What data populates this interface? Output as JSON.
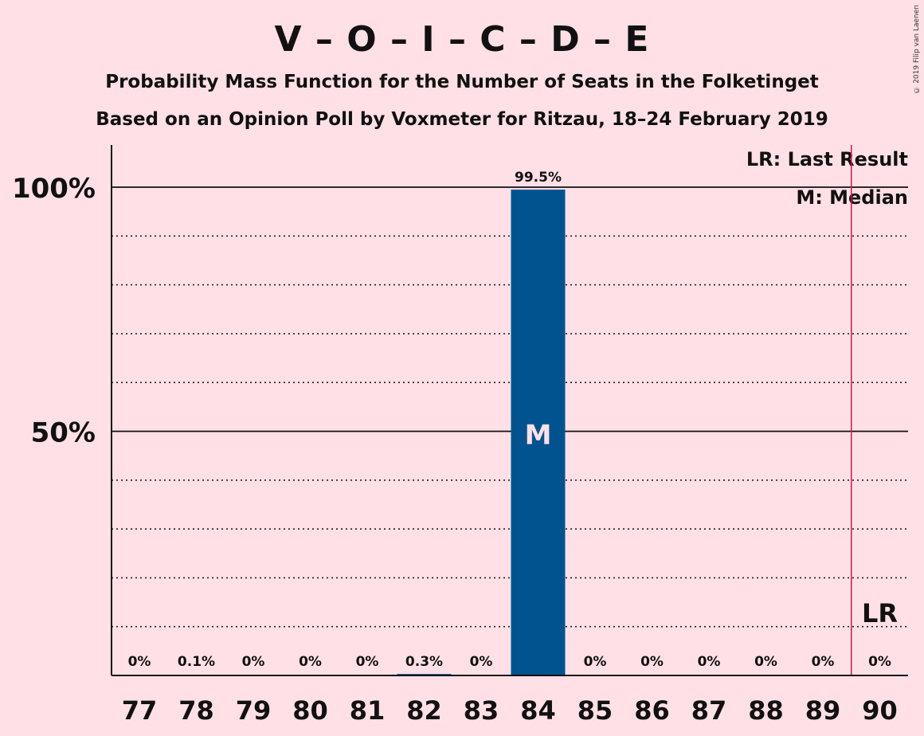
{
  "title": "V – O – I – C – D – E",
  "subtitle1": "Probability Mass Function for the Number of Seats in the Folketinget",
  "subtitle2": "Based on an Opinion Poll by Voxmeter for Ritzau, 18–24 February 2019",
  "credit": "© 2019 Filip van Laenen",
  "legend": {
    "lr": "LR: Last Result",
    "median": "M: Median"
  },
  "colors": {
    "background": "#FFE0E6",
    "bar": "#00538F",
    "last_result_line": "#C8174A"
  },
  "chart_data": {
    "type": "bar",
    "categories": [
      "77",
      "78",
      "79",
      "80",
      "81",
      "82",
      "83",
      "84",
      "85",
      "86",
      "87",
      "88",
      "89",
      "90"
    ],
    "values": [
      0,
      0.1,
      0,
      0,
      0,
      0.3,
      0,
      99.5,
      0,
      0,
      0,
      0,
      0,
      0
    ],
    "labels": [
      "0%",
      "0.1%",
      "0%",
      "0%",
      "0%",
      "0.3%",
      "0%",
      "99.5%",
      "0%",
      "0%",
      "0%",
      "0%",
      "0%",
      "0%"
    ],
    "ylim": [
      0,
      110
    ],
    "yticks": [
      {
        "value": 50,
        "label": "50%"
      },
      {
        "value": 100,
        "label": "100%"
      }
    ],
    "minor_gridlines": [
      10,
      20,
      30,
      40,
      60,
      70,
      80,
      90
    ],
    "median": {
      "category": "84",
      "label": "M"
    },
    "last_result": {
      "category": "90",
      "label": "LR"
    }
  }
}
